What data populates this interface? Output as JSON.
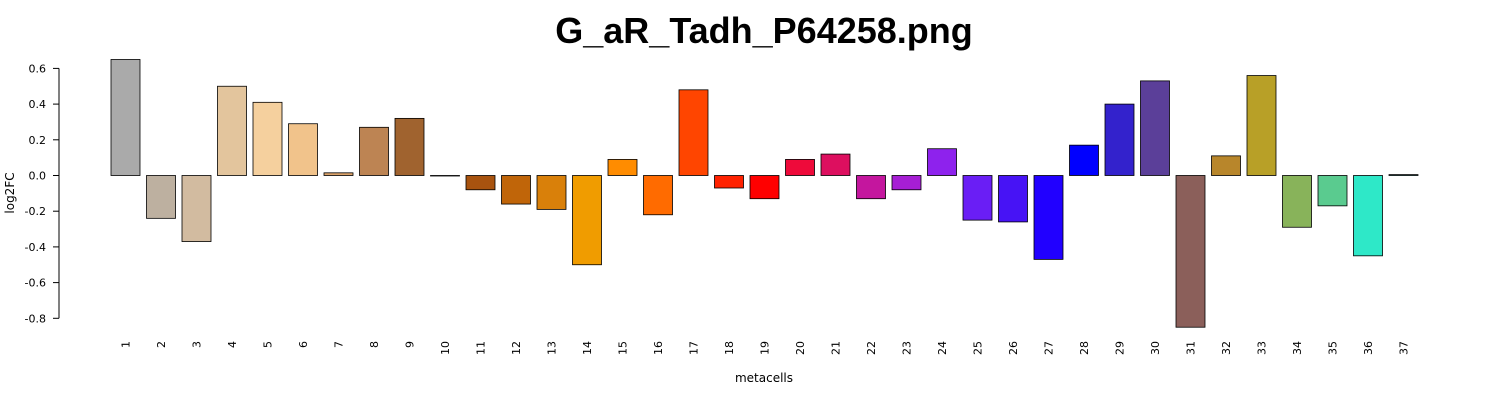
{
  "chart_data": {
    "type": "bar",
    "title": "G_aR_Tadh_P64258.png",
    "xlabel": "metacells",
    "ylabel": "log2FC",
    "ylim": [
      -0.85,
      0.66
    ],
    "yticks": [
      "0.6",
      "0.4",
      "0.2",
      "0.0",
      "-0.2",
      "-0.4",
      "-0.6",
      "-0.8"
    ],
    "ytick_values": [
      0.6,
      0.4,
      0.2,
      0.0,
      -0.2,
      -0.4,
      -0.6,
      -0.8
    ],
    "grid": false,
    "categories": [
      "1",
      "2",
      "3",
      "4",
      "5",
      "6",
      "7",
      "8",
      "9",
      "10",
      "11",
      "12",
      "13",
      "14",
      "15",
      "16",
      "17",
      "18",
      "19",
      "20",
      "21",
      "22",
      "23",
      "24",
      "25",
      "26",
      "27",
      "28",
      "29",
      "30",
      "31",
      "32",
      "33",
      "34",
      "35",
      "36",
      "37"
    ],
    "values": [
      0.65,
      -0.24,
      -0.37,
      0.5,
      0.41,
      0.29,
      0.015,
      0.27,
      0.32,
      0.0,
      -0.08,
      -0.16,
      -0.19,
      -0.5,
      0.09,
      -0.22,
      0.48,
      -0.07,
      -0.13,
      0.09,
      0.12,
      -0.13,
      -0.08,
      0.15,
      -0.25,
      -0.26,
      -0.47,
      0.17,
      0.4,
      0.53,
      -0.85,
      0.11,
      0.56,
      -0.29,
      -0.17,
      -0.45,
      0.005
    ],
    "colors": [
      "#aaaaaa",
      "#bdb0a0",
      "#d2bba0",
      "#e3c59d",
      "#f5d09e",
      "#f1c38b",
      "#dba36b",
      "#bd8453",
      "#a0632f",
      "#8b4513",
      "#a8530f",
      "#c06509",
      "#d9800a",
      "#f09c00",
      "#ff8c00",
      "#ff6b00",
      "#ff4500",
      "#ff2200",
      "#ff0000",
      "#ee0a3a",
      "#dd0f5f",
      "#c4169e",
      "#a61ed4",
      "#8e22ed",
      "#6a1ef5",
      "#4713f5",
      "#2100ff",
      "#0000ff",
      "#3322cc",
      "#5b3f99",
      "#8b5f5a",
      "#b8862b",
      "#b8a027",
      "#88b35a",
      "#5acb8f",
      "#2ee8c8",
      "#20b2aa"
    ]
  }
}
